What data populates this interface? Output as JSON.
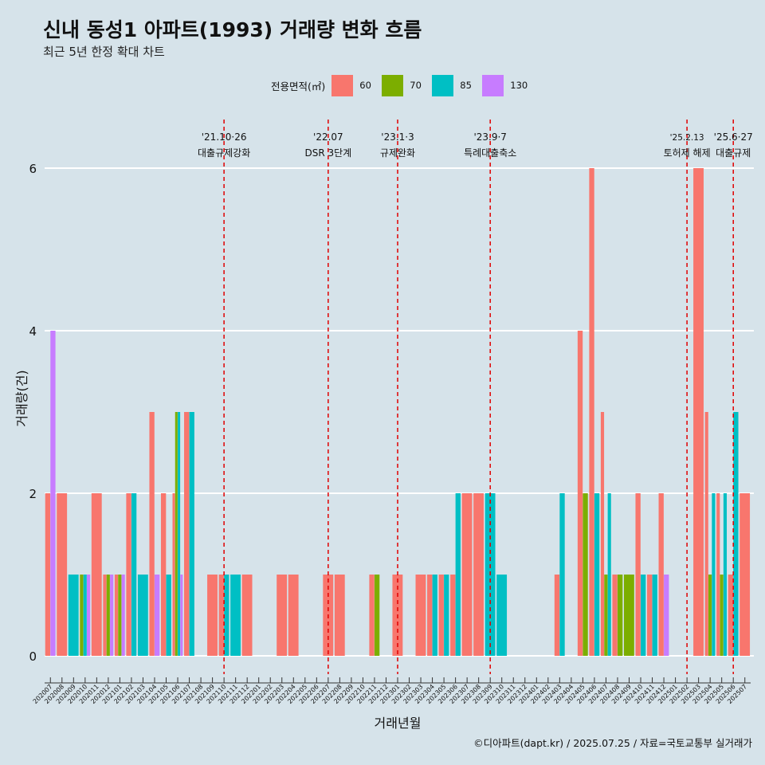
{
  "header": {
    "title": "신내 동성1 아파트(1993) 거래량 변화 흐름",
    "subtitle": "최근 5년 한정 확대 차트"
  },
  "legend": {
    "title": "전용면적(㎡)",
    "items": [
      {
        "label": "60",
        "color": "#f8766d"
      },
      {
        "label": "70",
        "color": "#7cae00"
      },
      {
        "label": "85",
        "color": "#00bfc4"
      },
      {
        "label": "130",
        "color": "#c77cff"
      }
    ]
  },
  "caption": "©디아파트(dapt.kr) / 2025.07.25 / 자료=국토교통부 실거래가",
  "chart_data": {
    "type": "bar",
    "title": "신내 동성1 아파트(1993) 거래량 변화 흐름",
    "xlabel": "거래년월",
    "ylabel": "거래량(건)",
    "ylim": [
      0,
      6
    ],
    "yticks": [
      0,
      2,
      4,
      6
    ],
    "categories": [
      "202007",
      "202008",
      "202009",
      "202010",
      "202011",
      "202012",
      "202101",
      "202102",
      "202103",
      "202104",
      "202105",
      "202106",
      "202107",
      "202108",
      "202109",
      "202110",
      "202111",
      "202112",
      "202201",
      "202202",
      "202203",
      "202204",
      "202205",
      "202206",
      "202207",
      "202208",
      "202209",
      "202210",
      "202211",
      "202212",
      "202301",
      "202302",
      "202303",
      "202304",
      "202305",
      "202306",
      "202307",
      "202308",
      "202309",
      "202310",
      "202311",
      "202312",
      "202401",
      "202402",
      "202403",
      "202404",
      "202405",
      "202406",
      "202407",
      "202408",
      "202409",
      "202410",
      "202411",
      "202412",
      "202501",
      "202502",
      "202503",
      "202504",
      "202505",
      "202506",
      "202507"
    ],
    "series": [
      {
        "name": "60",
        "color": "#f8766d",
        "values": [
          2,
          2,
          0,
          0,
          2,
          1,
          1,
          2,
          0,
          3,
          2,
          2,
          3,
          0,
          1,
          1,
          0,
          1,
          0,
          0,
          1,
          1,
          0,
          0,
          1,
          1,
          0,
          0,
          1,
          0,
          1,
          0,
          1,
          1,
          1,
          1,
          2,
          2,
          0,
          0,
          0,
          0,
          0,
          0,
          1,
          0,
          4,
          6,
          3,
          1,
          0,
          2,
          1,
          2,
          0,
          0,
          6,
          3,
          2,
          1,
          2
        ]
      },
      {
        "name": "70",
        "color": "#7cae00",
        "values": [
          0,
          0,
          0,
          1,
          0,
          1,
          1,
          0,
          0,
          0,
          0,
          3,
          0,
          0,
          0,
          0,
          0,
          0,
          0,
          0,
          0,
          0,
          0,
          0,
          0,
          0,
          0,
          0,
          1,
          0,
          0,
          0,
          0,
          0,
          0,
          0,
          0,
          0,
          0,
          0,
          0,
          0,
          0,
          0,
          0,
          0,
          2,
          0,
          1,
          1,
          1,
          0,
          0,
          0,
          0,
          0,
          0,
          1,
          1,
          0,
          0
        ]
      },
      {
        "name": "85",
        "color": "#00bfc4",
        "values": [
          0,
          0,
          1,
          1,
          0,
          0,
          0,
          2,
          1,
          0,
          1,
          3,
          3,
          0,
          0,
          1,
          1,
          0,
          0,
          0,
          0,
          0,
          0,
          0,
          0,
          0,
          0,
          0,
          0,
          0,
          0,
          0,
          0,
          1,
          1,
          2,
          0,
          0,
          2,
          1,
          0,
          0,
          0,
          0,
          2,
          0,
          0,
          2,
          2,
          0,
          0,
          1,
          1,
          0,
          0,
          0,
          0,
          2,
          2,
          3,
          0
        ]
      },
      {
        "name": "130",
        "color": "#c77cff",
        "values": [
          4,
          0,
          0,
          1,
          0,
          1,
          1,
          0,
          0,
          1,
          0,
          1,
          0,
          0,
          0,
          0,
          0,
          0,
          0,
          0,
          0,
          0,
          0,
          0,
          0,
          0,
          0,
          0,
          0,
          0,
          0,
          0,
          0,
          0,
          0,
          0,
          0,
          0,
          0,
          0,
          0,
          0,
          0,
          0,
          0,
          0,
          0,
          0,
          0,
          0,
          0,
          0,
          0,
          1,
          0,
          0,
          0,
          0,
          0,
          0,
          0
        ]
      }
    ],
    "annotations": [
      {
        "date": "'21.10·26",
        "label": "대출규제강화",
        "month_index": 15
      },
      {
        "date": "'22.07",
        "label": "DSR 3단계",
        "month_index": 24
      },
      {
        "date": "'23.1·3",
        "label": "규제완화",
        "month_index": 30
      },
      {
        "date": "'23.9·7",
        "label": "특례대출축소",
        "month_index": 38
      },
      {
        "date": "'25.2.13",
        "label": "토허제 해제",
        "month_index": 55
      },
      {
        "date": "'25.6·27",
        "label": "대출규제",
        "month_index": 59
      }
    ]
  }
}
